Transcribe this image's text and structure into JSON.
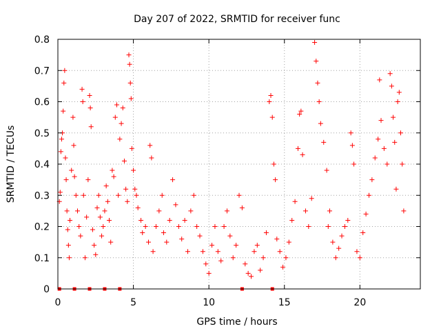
{
  "chart_data": {
    "type": "scatter",
    "title": "Day 207 of 2022, SRMTID for receiver func",
    "xlabel": "GPS time / hours",
    "ylabel": "SRMTID / TECUs",
    "xlim": [
      0,
      24
    ],
    "ylim": [
      0,
      0.8
    ],
    "xticks": [
      0,
      5,
      10,
      15,
      20
    ],
    "xtick_labels": [
      "0",
      "5",
      "10",
      "15",
      "20"
    ],
    "yticks": [
      0,
      0.1,
      0.2,
      0.3,
      0.4,
      0.5,
      0.6,
      0.7,
      0.8
    ],
    "ytick_labels": [
      "0",
      "0.1",
      "0.2",
      "0.3",
      "0.4",
      "0.5",
      "0.6",
      "0.7",
      "0.8"
    ],
    "grid": true,
    "marker": "+",
    "color": "#ff0000",
    "series": [
      {
        "name": "SRMTID",
        "points": [
          [
            0.1,
            0.28
          ],
          [
            0.15,
            0.31
          ],
          [
            0.2,
            0.44
          ],
          [
            0.25,
            0.48
          ],
          [
            0.3,
            0.5
          ],
          [
            0.35,
            0.57
          ],
          [
            0.4,
            0.66
          ],
          [
            0.45,
            0.7
          ],
          [
            0.5,
            0.42
          ],
          [
            0.55,
            0.35
          ],
          [
            0.6,
            0.25
          ],
          [
            0.65,
            0.19
          ],
          [
            0.7,
            0.14
          ],
          [
            0.75,
            0.1
          ],
          [
            0.8,
            0.22
          ],
          [
            0.9,
            0.38
          ],
          [
            1.0,
            0.55
          ],
          [
            1.05,
            0.46
          ],
          [
            1.1,
            0.36
          ],
          [
            1.2,
            0.3
          ],
          [
            1.3,
            0.25
          ],
          [
            1.4,
            0.2
          ],
          [
            1.5,
            0.17
          ],
          [
            1.6,
            0.64
          ],
          [
            1.65,
            0.6
          ],
          [
            1.7,
            0.3
          ],
          [
            1.8,
            0.1
          ],
          [
            1.9,
            0.23
          ],
          [
            2.0,
            0.35
          ],
          [
            2.1,
            0.62
          ],
          [
            2.15,
            0.58
          ],
          [
            2.2,
            0.52
          ],
          [
            2.3,
            0.19
          ],
          [
            2.4,
            0.14
          ],
          [
            2.5,
            0.11
          ],
          [
            2.6,
            0.26
          ],
          [
            2.7,
            0.3
          ],
          [
            2.8,
            0.23
          ],
          [
            2.9,
            0.17
          ],
          [
            3.0,
            0.2
          ],
          [
            3.1,
            0.25
          ],
          [
            3.2,
            0.33
          ],
          [
            3.3,
            0.28
          ],
          [
            3.4,
            0.22
          ],
          [
            3.5,
            0.15
          ],
          [
            3.6,
            0.38
          ],
          [
            3.7,
            0.36
          ],
          [
            3.8,
            0.55
          ],
          [
            3.9,
            0.59
          ],
          [
            4.0,
            0.3
          ],
          [
            4.1,
            0.48
          ],
          [
            4.2,
            0.53
          ],
          [
            4.3,
            0.58
          ],
          [
            4.4,
            0.41
          ],
          [
            4.5,
            0.32
          ],
          [
            4.6,
            0.28
          ],
          [
            4.7,
            0.75
          ],
          [
            4.75,
            0.72
          ],
          [
            4.8,
            0.66
          ],
          [
            4.85,
            0.61
          ],
          [
            4.9,
            0.45
          ],
          [
            5.0,
            0.38
          ],
          [
            5.1,
            0.32
          ],
          [
            5.2,
            0.3
          ],
          [
            5.3,
            0.26
          ],
          [
            5.5,
            0.22
          ],
          [
            5.6,
            0.18
          ],
          [
            5.8,
            0.2
          ],
          [
            6.0,
            0.15
          ],
          [
            6.1,
            0.46
          ],
          [
            6.2,
            0.42
          ],
          [
            6.3,
            0.12
          ],
          [
            6.5,
            0.2
          ],
          [
            6.7,
            0.25
          ],
          [
            6.9,
            0.3
          ],
          [
            7.0,
            0.18
          ],
          [
            7.2,
            0.15
          ],
          [
            7.4,
            0.22
          ],
          [
            7.6,
            0.35
          ],
          [
            7.8,
            0.27
          ],
          [
            8.0,
            0.2
          ],
          [
            8.2,
            0.16
          ],
          [
            8.4,
            0.22
          ],
          [
            8.6,
            0.12
          ],
          [
            8.8,
            0.25
          ],
          [
            9.0,
            0.3
          ],
          [
            9.2,
            0.2
          ],
          [
            9.4,
            0.17
          ],
          [
            9.6,
            0.12
          ],
          [
            9.8,
            0.08
          ],
          [
            10.0,
            0.05
          ],
          [
            10.2,
            0.14
          ],
          [
            10.4,
            0.2
          ],
          [
            10.6,
            0.12
          ],
          [
            10.8,
            0.09
          ],
          [
            11.0,
            0.2
          ],
          [
            11.2,
            0.25
          ],
          [
            11.4,
            0.17
          ],
          [
            11.6,
            0.1
          ],
          [
            11.8,
            0.14
          ],
          [
            12.0,
            0.3
          ],
          [
            12.2,
            0.26
          ],
          [
            12.4,
            0.08
          ],
          [
            12.6,
            0.05
          ],
          [
            12.8,
            0.04
          ],
          [
            13.0,
            0.12
          ],
          [
            13.2,
            0.14
          ],
          [
            13.4,
            0.06
          ],
          [
            13.6,
            0.1
          ],
          [
            13.8,
            0.18
          ],
          [
            14.0,
            0.6
          ],
          [
            14.1,
            0.62
          ],
          [
            14.2,
            0.55
          ],
          [
            14.3,
            0.4
          ],
          [
            14.4,
            0.35
          ],
          [
            14.5,
            0.16
          ],
          [
            14.7,
            0.12
          ],
          [
            14.9,
            0.07
          ],
          [
            15.1,
            0.1
          ],
          [
            15.3,
            0.15
          ],
          [
            15.5,
            0.22
          ],
          [
            15.7,
            0.28
          ],
          [
            15.9,
            0.45
          ],
          [
            16.0,
            0.56
          ],
          [
            16.1,
            0.57
          ],
          [
            16.2,
            0.43
          ],
          [
            16.4,
            0.25
          ],
          [
            16.6,
            0.2
          ],
          [
            16.8,
            0.29
          ],
          [
            17.0,
            0.79
          ],
          [
            17.1,
            0.73
          ],
          [
            17.2,
            0.66
          ],
          [
            17.3,
            0.6
          ],
          [
            17.4,
            0.53
          ],
          [
            17.6,
            0.47
          ],
          [
            17.8,
            0.38
          ],
          [
            17.9,
            0.2
          ],
          [
            18.0,
            0.25
          ],
          [
            18.2,
            0.15
          ],
          [
            18.4,
            0.1
          ],
          [
            18.6,
            0.13
          ],
          [
            18.8,
            0.17
          ],
          [
            19.0,
            0.2
          ],
          [
            19.2,
            0.22
          ],
          [
            19.4,
            0.5
          ],
          [
            19.5,
            0.46
          ],
          [
            19.6,
            0.4
          ],
          [
            19.8,
            0.12
          ],
          [
            20.0,
            0.1
          ],
          [
            20.2,
            0.18
          ],
          [
            20.4,
            0.24
          ],
          [
            20.6,
            0.3
          ],
          [
            20.8,
            0.35
          ],
          [
            21.0,
            0.42
          ],
          [
            21.2,
            0.48
          ],
          [
            21.3,
            0.67
          ],
          [
            21.4,
            0.54
          ],
          [
            21.6,
            0.45
          ],
          [
            21.8,
            0.4
          ],
          [
            22.0,
            0.69
          ],
          [
            22.1,
            0.65
          ],
          [
            22.2,
            0.55
          ],
          [
            22.3,
            0.47
          ],
          [
            22.4,
            0.32
          ],
          [
            22.5,
            0.6
          ],
          [
            22.6,
            0.63
          ],
          [
            22.7,
            0.5
          ],
          [
            22.8,
            0.4
          ],
          [
            22.9,
            0.25
          ]
        ]
      }
    ],
    "zero_markers_x": [
      0.1,
      1.1,
      2.1,
      3.1,
      4.1,
      12.2,
      14.2
    ]
  }
}
